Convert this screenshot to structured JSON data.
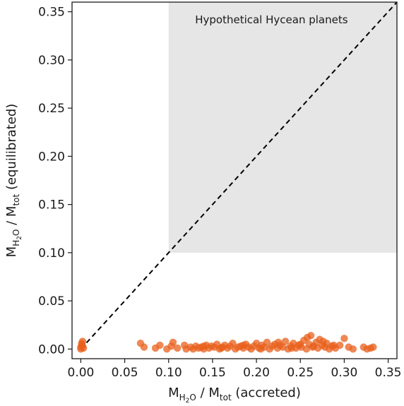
{
  "chart_data": {
    "type": "scatter",
    "title": "",
    "xlabel": {
      "base": "M",
      "sub1": "H",
      "sub2": "2",
      "sub3": "O",
      "sep": " / M",
      "sub4": "tot",
      "suffix": " (accreted)"
    },
    "ylabel": {
      "base": "M",
      "sub1": "H",
      "sub2": "2",
      "sub3": "O",
      "sep": " / M",
      "sub4": "tot",
      "suffix": " (equilibrated)"
    },
    "xlim": [
      -0.01,
      0.36
    ],
    "ylim": [
      -0.01,
      0.36
    ],
    "xticks": [
      "0.00",
      "0.05",
      "0.10",
      "0.15",
      "0.20",
      "0.25",
      "0.30",
      "0.35"
    ],
    "yticks": [
      "0.00",
      "0.05",
      "0.10",
      "0.15",
      "0.20",
      "0.25",
      "0.30",
      "0.35"
    ],
    "xtick_values": [
      0,
      0.05,
      0.1,
      0.15,
      0.2,
      0.25,
      0.3,
      0.35
    ],
    "ytick_values": [
      0,
      0.05,
      0.1,
      0.15,
      0.2,
      0.25,
      0.3,
      0.35
    ],
    "shaded_region": {
      "x_from": 0.1,
      "x_to": 0.36,
      "y_from": 0.1,
      "y_to": 0.36,
      "label": "Hypothetical Hycean planets",
      "color": "#e6e6e6"
    },
    "reference_line": {
      "from": [
        0,
        0
      ],
      "to": [
        0.36,
        0.36
      ],
      "style": "dashed",
      "color": "#000000"
    },
    "marker_color": "#e8601c",
    "grid": false,
    "points": [
      [
        0.0,
        0.0
      ],
      [
        0.001,
        0.004
      ],
      [
        0.002,
        0.008
      ],
      [
        0.0,
        0.002
      ],
      [
        0.003,
        0.001
      ],
      [
        0.001,
        0.006
      ],
      [
        0.002,
        0.003
      ],
      [
        0.068,
        0.006
      ],
      [
        0.072,
        0.002
      ],
      [
        0.085,
        0.001
      ],
      [
        0.09,
        0.004
      ],
      [
        0.098,
        0.0
      ],
      [
        0.103,
        0.003
      ],
      [
        0.105,
        0.007
      ],
      [
        0.11,
        0.001
      ],
      [
        0.118,
        0.004
      ],
      [
        0.125,
        0.002
      ],
      [
        0.128,
        0.0
      ],
      [
        0.131,
        0.003
      ],
      [
        0.134,
        0.001
      ],
      [
        0.137,
        0.002
      ],
      [
        0.14,
        0.0
      ],
      [
        0.143,
        0.004
      ],
      [
        0.146,
        0.001
      ],
      [
        0.149,
        0.003
      ],
      [
        0.152,
        0.002
      ],
      [
        0.155,
        0.005
      ],
      [
        0.158,
        0.0
      ],
      [
        0.161,
        0.002
      ],
      [
        0.164,
        0.004
      ],
      [
        0.167,
        0.001
      ],
      [
        0.17,
        0.003
      ],
      [
        0.173,
        0.006
      ],
      [
        0.176,
        0.0
      ],
      [
        0.179,
        0.002
      ],
      [
        0.182,
        0.003
      ],
      [
        0.185,
        0.001
      ],
      [
        0.188,
        0.005
      ],
      [
        0.191,
        0.002
      ],
      [
        0.194,
        0.0
      ],
      [
        0.197,
        0.003
      ],
      [
        0.2,
        0.006
      ],
      [
        0.203,
        0.001
      ],
      [
        0.206,
        0.004
      ],
      [
        0.209,
        0.002
      ],
      [
        0.212,
        0.007
      ],
      [
        0.215,
        0.0
      ],
      [
        0.218,
        0.003
      ],
      [
        0.221,
        0.005
      ],
      [
        0.224,
        0.001
      ],
      [
        0.227,
        0.004
      ],
      [
        0.23,
        0.002
      ],
      [
        0.233,
        0.008
      ],
      [
        0.236,
        0.0
      ],
      [
        0.239,
        0.003
      ],
      [
        0.242,
        0.006
      ],
      [
        0.245,
        0.001
      ],
      [
        0.248,
        0.004
      ],
      [
        0.251,
        0.002
      ],
      [
        0.254,
        0.009
      ],
      [
        0.257,
        0.0
      ],
      [
        0.26,
        0.005
      ],
      [
        0.262,
        0.014
      ],
      [
        0.265,
        0.003
      ],
      [
        0.268,
        0.007
      ],
      [
        0.27,
        0.001
      ],
      [
        0.272,
        0.01
      ],
      [
        0.275,
        0.004
      ],
      [
        0.278,
        0.002
      ],
      [
        0.28,
        0.006
      ],
      [
        0.283,
        0.0
      ],
      [
        0.286,
        0.003
      ],
      [
        0.29,
        0.001
      ],
      [
        0.295,
        0.004
      ],
      [
        0.3,
        0.011
      ],
      [
        0.305,
        0.002
      ],
      [
        0.31,
        0.0
      ],
      [
        0.322,
        0.002
      ],
      [
        0.326,
        0.0
      ],
      [
        0.33,
        0.001
      ],
      [
        0.333,
        0.002
      ],
      [
        0.16,
        0.001
      ],
      [
        0.185,
        0.004
      ],
      [
        0.205,
        0.0
      ],
      [
        0.225,
        0.007
      ],
      [
        0.24,
        0.001
      ],
      [
        0.25,
        0.005
      ],
      [
        0.258,
        0.012
      ],
      [
        0.264,
        0.002
      ],
      [
        0.276,
        0.008
      ],
      [
        0.288,
        0.004
      ],
      [
        0.14,
        0.003
      ],
      [
        0.12,
        0.0
      ]
    ]
  }
}
